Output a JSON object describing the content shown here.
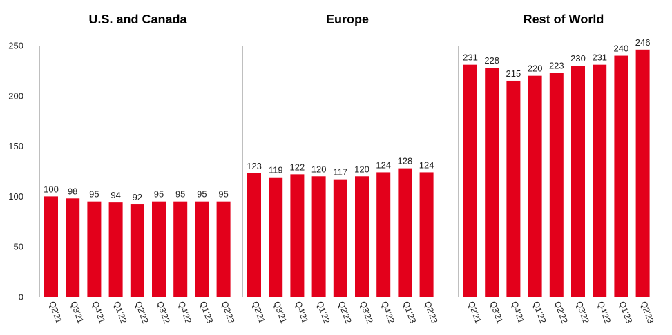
{
  "chart_data": {
    "type": "bar",
    "bar_color": "#E3001B",
    "ylim": [
      0,
      250
    ],
    "y_ticks": [
      0,
      50,
      100,
      150,
      200,
      250
    ],
    "y_tick_labels": [
      "0",
      "50",
      "100",
      "150",
      "200",
      "250"
    ],
    "categories": [
      "Q2'21",
      "Q3'21",
      "Q4'21",
      "Q1'22",
      "Q2'22",
      "Q3'22",
      "Q4'22",
      "Q1'23",
      "Q2'23"
    ],
    "series": [
      {
        "name": "U.S. and Canada",
        "values": [
          100,
          98,
          95,
          94,
          92,
          95,
          95,
          95,
          95
        ]
      },
      {
        "name": "Europe",
        "values": [
          123,
          119,
          122,
          120,
          117,
          120,
          124,
          128,
          124
        ]
      },
      {
        "name": "Rest of World",
        "values": [
          231,
          228,
          215,
          220,
          223,
          230,
          231,
          240,
          246
        ]
      }
    ]
  }
}
